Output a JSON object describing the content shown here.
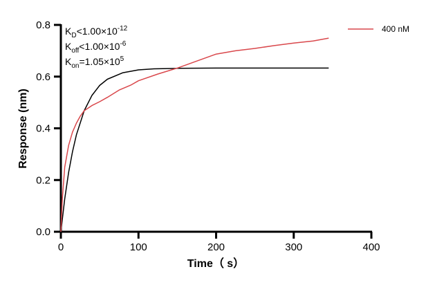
{
  "chart_data": {
    "type": "line",
    "xlabel": "Time（ s）",
    "ylabel": "Response (nm)",
    "xlim": [
      0,
      400
    ],
    "ylim": [
      0,
      0.8
    ],
    "xticks": [
      "0",
      "100",
      "200",
      "300",
      "400"
    ],
    "yticks": [
      "0.0",
      "0.2",
      "0.4",
      "0.6",
      "0.8"
    ],
    "grid": false,
    "legend_position": "top-right",
    "annotations": [
      {
        "main": "K",
        "sub": "D",
        "rel": "<1.00×10",
        "sup": "-12"
      },
      {
        "main": "K",
        "sub": "off",
        "rel": "<1.00×10",
        "sup": "-6"
      },
      {
        "main": "K",
        "sub": "on",
        "rel": "=1.05×10",
        "sup": "5"
      }
    ],
    "series": [
      {
        "name": "400 nM",
        "color": "#d9474b",
        "x": [
          0,
          2,
          5,
          10,
          15,
          20,
          25,
          30,
          40,
          50,
          60,
          75,
          90,
          100,
          125,
          150,
          175,
          200,
          225,
          250,
          275,
          300,
          325,
          345
        ],
        "y": [
          0,
          0.13,
          0.25,
          0.334,
          0.385,
          0.42,
          0.447,
          0.468,
          0.488,
          0.503,
          0.52,
          0.548,
          0.567,
          0.584,
          0.61,
          0.633,
          0.66,
          0.687,
          0.7,
          0.709,
          0.72,
          0.73,
          0.738,
          0.749
        ]
      },
      {
        "color": "#000000",
        "x": [
          0,
          5,
          10,
          15,
          20,
          30,
          40,
          50,
          60,
          80,
          100,
          120,
          150,
          200,
          345
        ],
        "y": [
          0,
          0.127,
          0.229,
          0.309,
          0.375,
          0.468,
          0.527,
          0.566,
          0.59,
          0.615,
          0.626,
          0.63,
          0.632,
          0.633,
          0.633
        ]
      }
    ]
  }
}
